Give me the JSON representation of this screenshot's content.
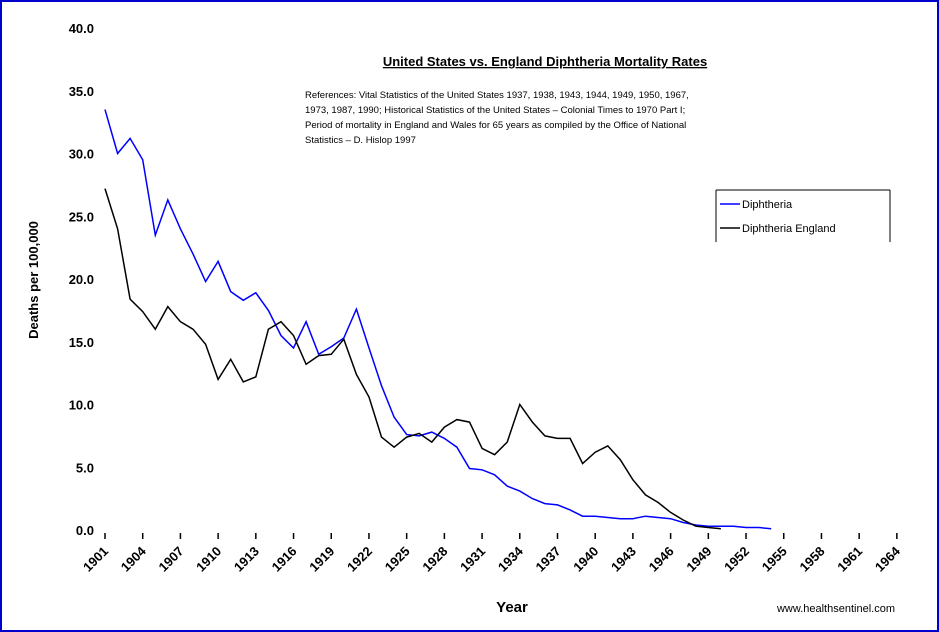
{
  "chart_data": {
    "type": "line",
    "title": "United States vs. England Diphtheria Mortality Rates",
    "note_lines": [
      "References: Vital Statistics of the United States 1937, 1938, 1943, 1944, 1949, 1950, 1967,",
      "1973, 1987, 1990; Historical Statistics of the United States – Colonial Times to 1970 Part I;",
      "Period of mortality in England and Wales for 65 years as compiled by the Office of National",
      "Statistics – D. Hislop 1997"
    ],
    "x_label": "Year",
    "y_label": "Deaths per 100,000",
    "source": "www.healthsentinel.com",
    "x": [
      1901,
      1902,
      1903,
      1904,
      1905,
      1906,
      1907,
      1908,
      1909,
      1910,
      1911,
      1912,
      1913,
      1914,
      1915,
      1916,
      1917,
      1918,
      1919,
      1920,
      1921,
      1922,
      1923,
      1924,
      1925,
      1926,
      1927,
      1928,
      1929,
      1930,
      1931,
      1932,
      1933,
      1934,
      1935,
      1936,
      1937,
      1938,
      1939,
      1940,
      1941,
      1942,
      1943,
      1944,
      1945,
      1946,
      1947,
      1948,
      1949,
      1950,
      1951,
      1952,
      1953,
      1954
    ],
    "series": [
      {
        "name": "Diphtheria",
        "color": "#0000ff",
        "values": [
          33.5,
          30,
          31.2,
          29.5,
          23.5,
          26.3,
          24,
          22,
          19.8,
          21.4,
          19,
          18.3,
          18.9,
          17.5,
          15.5,
          14.5,
          16.6,
          14,
          14.6,
          15.3,
          17.6,
          14.5,
          11.5,
          9,
          7.6,
          7.5,
          7.8,
          7.3,
          6.6,
          4.9,
          4.8,
          4.4,
          3.5,
          3.1,
          2.5,
          2.1,
          2.0,
          1.6,
          1.1,
          1.1,
          1.0,
          0.9,
          0.9,
          1.1,
          1.0,
          0.9,
          0.6,
          0.4,
          0.3,
          0.3,
          0.3,
          0.2,
          0.2,
          0.1
        ]
      },
      {
        "name": "Diphtheria England",
        "color": "#000000",
        "values": [
          27.2,
          24,
          18.4,
          17.4,
          16,
          17.8,
          16.6,
          16,
          14.8,
          12,
          13.6,
          11.8,
          12.2,
          16,
          16.6,
          15.5,
          13.2,
          13.9,
          14,
          15.2,
          12.4,
          10.6,
          7.4,
          6.6,
          7.4,
          7.7,
          7,
          8.2,
          8.8,
          8.6,
          6.5,
          6,
          7,
          10,
          8.6,
          7.5,
          7.3,
          7.3,
          5.3,
          6.2,
          6.7,
          5.6,
          4,
          2.8,
          2.2,
          1.4,
          0.8,
          0.3,
          0.2,
          0.1,
          null,
          null,
          null,
          null
        ]
      }
    ],
    "xlim": [
      1901,
      1966
    ],
    "xticks": [
      1901,
      1904,
      1907,
      1910,
      1913,
      1916,
      1919,
      1922,
      1925,
      1928,
      1931,
      1934,
      1937,
      1940,
      1943,
      1946,
      1949,
      1952,
      1955,
      1958,
      1961,
      1964
    ],
    "ylim": [
      0,
      40
    ],
    "yticks": [
      {
        "value": 0,
        "label": "0.0"
      },
      {
        "value": 5,
        "label": "5.0"
      },
      {
        "value": 10,
        "label": "10.0"
      },
      {
        "value": 15,
        "label": "15.0"
      },
      {
        "value": 20,
        "label": "20.0"
      },
      {
        "value": 25,
        "label": "25.0"
      },
      {
        "value": 30,
        "label": "30.0"
      },
      {
        "value": 35,
        "label": "35.0"
      },
      {
        "value": 40,
        "label": "40.0"
      }
    ],
    "grid": false,
    "legend": "upper right"
  }
}
